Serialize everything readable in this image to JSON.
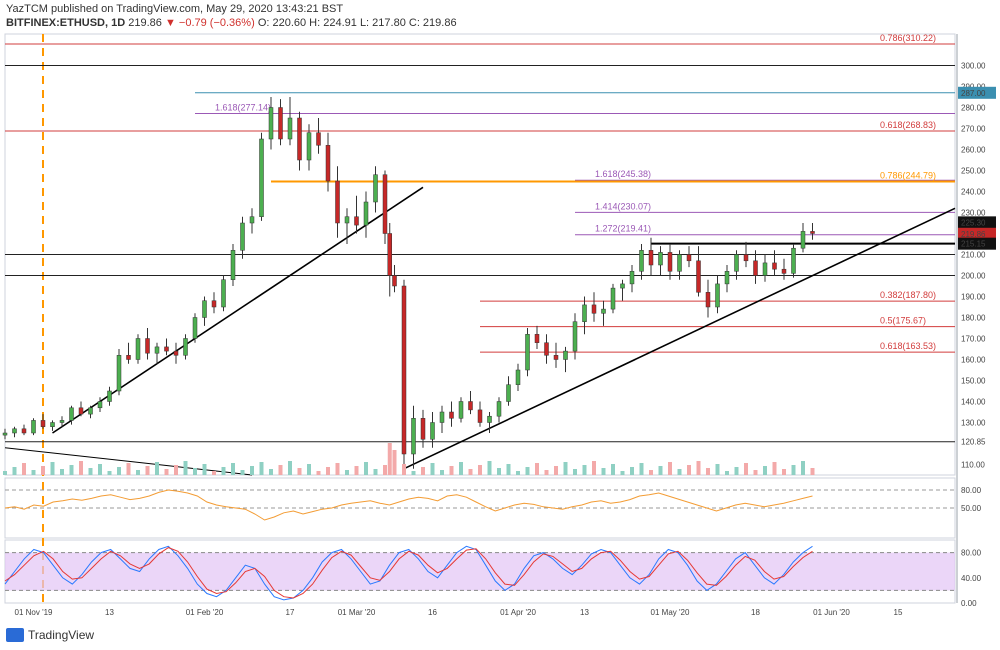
{
  "header": {
    "published": "YazTCM published on TradingView.com, May 29, 2020 13:43:21 BST",
    "symbol": "BITFINEX:ETHUSD, 1D",
    "price": "219.86",
    "change": "▼ −0.79 (−0.36%)",
    "ohlc": "O: 220.60  H: 224.91  L: 217.80  C: 219.86"
  },
  "logo": {
    "icon": "tradingview-logo-icon",
    "text": "TradingView"
  },
  "colors": {
    "up": "#4caf50",
    "down": "#c62828",
    "fib_red": "#d23c3c",
    "fib_purple": "#9b59b6",
    "fib_orange": "#ff9800",
    "teal": "#3b8fb0",
    "rsi": "#f39c34",
    "stoch_k": "#2979ff",
    "stoch_d": "#e53935",
    "stoch_band": "#e3c4f5"
  },
  "chart_data": [
    {
      "type": "candlestick",
      "title": "BITFINEX:ETHUSD, 1D",
      "y_axis_ticks": [
        "300.00",
        "290.00",
        "280.00",
        "270.00",
        "260.00",
        "250.00",
        "240.00",
        "230.00",
        "210.00",
        "200.00",
        "190.00",
        "180.00",
        "170.00",
        "160.00",
        "150.00",
        "140.00",
        "130.00",
        "120.85",
        "110.00"
      ],
      "ylim": [
        105,
        315
      ],
      "x_axis_ticks": [
        "01 Nov '19",
        "13",
        "01 Feb '20",
        "17",
        "01 Mar '20",
        "16",
        "01 Apr '20",
        "13",
        "01 May '20",
        "18",
        "01 Jun '20",
        "15"
      ],
      "x_tick_fracs": [
        0.03,
        0.11,
        0.21,
        0.3,
        0.37,
        0.45,
        0.54,
        0.61,
        0.7,
        0.79,
        0.87,
        0.94
      ],
      "price_badges": [
        {
          "label": "287.00",
          "value": 287.0
        },
        {
          "label": "225.30",
          "value": 225.3
        },
        {
          "label": "219.86",
          "value": 219.86
        },
        {
          "label": "215.15",
          "value": 215.15
        }
      ],
      "levels": [
        {
          "label": "0.786(310.22)",
          "value": 310.22,
          "color": "fib_red"
        },
        {
          "label": "1.618(277.14)",
          "value": 277.14,
          "color": "fib_purple"
        },
        {
          "label": "0.618(268.83)",
          "value": 268.83,
          "color": "fib_red"
        },
        {
          "label": "1.618(245.38)",
          "value": 245.38,
          "color": "fib_purple"
        },
        {
          "label": "0.786(244.79)",
          "value": 244.79,
          "color": "fib_orange"
        },
        {
          "label": "1.414(230.07)",
          "value": 230.07,
          "color": "fib_purple"
        },
        {
          "label": "1.272(219.41)",
          "value": 219.41,
          "color": "fib_purple"
        },
        {
          "label": "0.382(187.80)",
          "value": 187.8,
          "color": "fib_red"
        },
        {
          "label": "0.5(175.67)",
          "value": 175.67,
          "color": "fib_red"
        },
        {
          "label": "0.618(163.53)",
          "value": 163.53,
          "color": "fib_red"
        }
      ],
      "candles": [
        [
          0.0,
          124,
          127,
          122,
          125
        ],
        [
          0.01,
          125,
          128,
          123,
          127
        ],
        [
          0.02,
          127,
          129,
          124,
          125
        ],
        [
          0.03,
          125,
          132,
          124,
          131
        ],
        [
          0.04,
          131,
          134,
          127,
          128
        ],
        [
          0.05,
          128,
          131,
          126,
          130
        ],
        [
          0.06,
          130,
          133,
          128,
          131
        ],
        [
          0.07,
          131,
          138,
          129,
          137
        ],
        [
          0.08,
          137,
          140,
          133,
          134
        ],
        [
          0.09,
          134,
          138,
          132,
          137
        ],
        [
          0.1,
          137,
          142,
          135,
          140
        ],
        [
          0.11,
          140,
          147,
          138,
          145
        ],
        [
          0.12,
          145,
          165,
          143,
          162
        ],
        [
          0.13,
          162,
          168,
          158,
          160
        ],
        [
          0.14,
          160,
          172,
          158,
          170
        ],
        [
          0.15,
          170,
          175,
          160,
          163
        ],
        [
          0.16,
          163,
          168,
          158,
          166
        ],
        [
          0.17,
          166,
          170,
          162,
          164
        ],
        [
          0.18,
          164,
          168,
          158,
          162
        ],
        [
          0.19,
          162,
          172,
          160,
          170
        ],
        [
          0.2,
          170,
          182,
          168,
          180
        ],
        [
          0.21,
          180,
          190,
          176,
          188
        ],
        [
          0.22,
          188,
          192,
          182,
          185
        ],
        [
          0.23,
          185,
          200,
          183,
          198
        ],
        [
          0.24,
          198,
          215,
          195,
          212
        ],
        [
          0.25,
          212,
          228,
          208,
          225
        ],
        [
          0.26,
          225,
          232,
          220,
          228
        ],
        [
          0.27,
          228,
          268,
          226,
          265
        ],
        [
          0.28,
          265,
          285,
          260,
          280
        ],
        [
          0.29,
          280,
          284,
          262,
          265
        ],
        [
          0.3,
          265,
          285,
          262,
          275
        ],
        [
          0.31,
          275,
          278,
          250,
          255
        ],
        [
          0.32,
          255,
          272,
          250,
          268
        ],
        [
          0.33,
          268,
          275,
          258,
          262
        ],
        [
          0.34,
          262,
          268,
          240,
          245
        ],
        [
          0.35,
          245,
          252,
          218,
          225
        ],
        [
          0.36,
          225,
          232,
          215,
          228
        ],
        [
          0.37,
          228,
          238,
          220,
          224
        ],
        [
          0.38,
          224,
          240,
          218,
          235
        ],
        [
          0.39,
          235,
          252,
          230,
          248
        ],
        [
          0.4,
          248,
          250,
          215,
          220
        ],
        [
          0.405,
          220,
          225,
          190,
          200
        ],
        [
          0.41,
          200,
          205,
          192,
          195
        ],
        [
          0.42,
          195,
          198,
          110,
          115
        ],
        [
          0.43,
          115,
          138,
          108,
          132
        ],
        [
          0.44,
          132,
          136,
          118,
          122
        ],
        [
          0.45,
          122,
          135,
          118,
          130
        ],
        [
          0.46,
          130,
          138,
          125,
          135
        ],
        [
          0.47,
          135,
          140,
          128,
          132
        ],
        [
          0.48,
          132,
          142,
          130,
          140
        ],
        [
          0.49,
          140,
          145,
          134,
          136
        ],
        [
          0.5,
          136,
          140,
          128,
          130
        ],
        [
          0.51,
          130,
          135,
          125,
          133
        ],
        [
          0.52,
          133,
          142,
          130,
          140
        ],
        [
          0.53,
          140,
          152,
          138,
          148
        ],
        [
          0.54,
          148,
          158,
          145,
          155
        ],
        [
          0.55,
          155,
          175,
          152,
          172
        ],
        [
          0.56,
          172,
          176,
          165,
          168
        ],
        [
          0.57,
          168,
          172,
          158,
          162
        ],
        [
          0.58,
          162,
          168,
          156,
          160
        ],
        [
          0.59,
          160,
          166,
          154,
          164
        ],
        [
          0.6,
          164,
          182,
          160,
          178
        ],
        [
          0.61,
          178,
          190,
          172,
          186
        ],
        [
          0.62,
          186,
          192,
          178,
          182
        ],
        [
          0.63,
          182,
          188,
          176,
          184
        ],
        [
          0.64,
          184,
          196,
          182,
          194
        ],
        [
          0.65,
          194,
          198,
          188,
          196
        ],
        [
          0.66,
          196,
          205,
          192,
          202
        ],
        [
          0.67,
          202,
          215,
          198,
          212
        ],
        [
          0.68,
          212,
          218,
          200,
          205
        ],
        [
          0.69,
          205,
          214,
          200,
          211
        ],
        [
          0.7,
          211,
          215,
          198,
          202
        ],
        [
          0.71,
          202,
          212,
          198,
          210
        ],
        [
          0.72,
          210,
          214,
          204,
          207
        ],
        [
          0.73,
          207,
          214,
          190,
          192
        ],
        [
          0.74,
          192,
          198,
          180,
          185
        ],
        [
          0.75,
          185,
          200,
          182,
          196
        ],
        [
          0.76,
          196,
          205,
          192,
          202
        ],
        [
          0.77,
          202,
          212,
          198,
          210
        ],
        [
          0.78,
          210,
          216,
          204,
          207
        ],
        [
          0.79,
          207,
          212,
          196,
          200
        ],
        [
          0.8,
          200,
          210,
          197,
          206
        ],
        [
          0.81,
          206,
          212,
          200,
          203
        ],
        [
          0.82,
          203,
          208,
          198,
          201
        ],
        [
          0.83,
          201,
          215,
          199,
          213
        ],
        [
          0.84,
          213,
          225,
          211,
          221
        ],
        [
          0.85,
          221,
          225,
          217,
          220
        ]
      ]
    },
    {
      "type": "line",
      "title": "RSI",
      "y_axis_ticks": [
        "80.00",
        "50.00"
      ],
      "ylim": [
        0,
        100
      ],
      "values": [
        50,
        52,
        48,
        55,
        53,
        60,
        62,
        65,
        63,
        66,
        70,
        72,
        68,
        64,
        66,
        70,
        76,
        80,
        78,
        75,
        70,
        60,
        55,
        52,
        50,
        48,
        40,
        30,
        35,
        42,
        45,
        40,
        44,
        48,
        50,
        55,
        58,
        60,
        62,
        58,
        55,
        60,
        65,
        68,
        66,
        62,
        70,
        72,
        68,
        60,
        52,
        45,
        50,
        55,
        58,
        56,
        52,
        50,
        48,
        52,
        55,
        60,
        62,
        58,
        60,
        64,
        70,
        72,
        75,
        70,
        65,
        60,
        55,
        50,
        45,
        50,
        55,
        58,
        55,
        52,
        55,
        58,
        62,
        66,
        70
      ]
    },
    {
      "type": "line",
      "title": "Stoch RSI",
      "y_axis_ticks": [
        "80.00",
        "40.00",
        "0.00"
      ],
      "ylim": [
        0,
        100
      ],
      "series": [
        {
          "values": [
            30,
            50,
            70,
            85,
            80,
            60,
            40,
            30,
            45,
            65,
            80,
            85,
            70,
            55,
            50,
            70,
            85,
            90,
            75,
            55,
            30,
            15,
            10,
            20,
            40,
            60,
            55,
            30,
            10,
            5,
            8,
            20,
            40,
            65,
            80,
            85,
            70,
            50,
            30,
            35,
            60,
            80,
            85,
            70,
            50,
            40,
            60,
            80,
            90,
            85,
            60,
            35,
            20,
            30,
            55,
            75,
            80,
            70,
            55,
            45,
            60,
            78,
            85,
            80,
            60,
            40,
            30,
            45,
            70,
            85,
            80,
            60,
            35,
            20,
            30,
            50,
            70,
            80,
            60,
            40,
            30,
            45,
            65,
            80,
            90
          ]
        },
        {
          "values": [
            35,
            45,
            60,
            75,
            82,
            70,
            50,
            38,
            40,
            55,
            70,
            82,
            75,
            62,
            55,
            62,
            78,
            88,
            82,
            65,
            42,
            22,
            15,
            18,
            32,
            50,
            55,
            42,
            20,
            10,
            8,
            15,
            30,
            52,
            72,
            82,
            76,
            58,
            40,
            36,
            50,
            70,
            82,
            76,
            60,
            48,
            55,
            70,
            84,
            86,
            70,
            48,
            30,
            28,
            45,
            65,
            78,
            74,
            62,
            50,
            55,
            70,
            80,
            82,
            68,
            50,
            38,
            42,
            60,
            78,
            82,
            68,
            48,
            30,
            28,
            42,
            60,
            74,
            68,
            50,
            38,
            42,
            58,
            72,
            82
          ]
        }
      ]
    }
  ]
}
